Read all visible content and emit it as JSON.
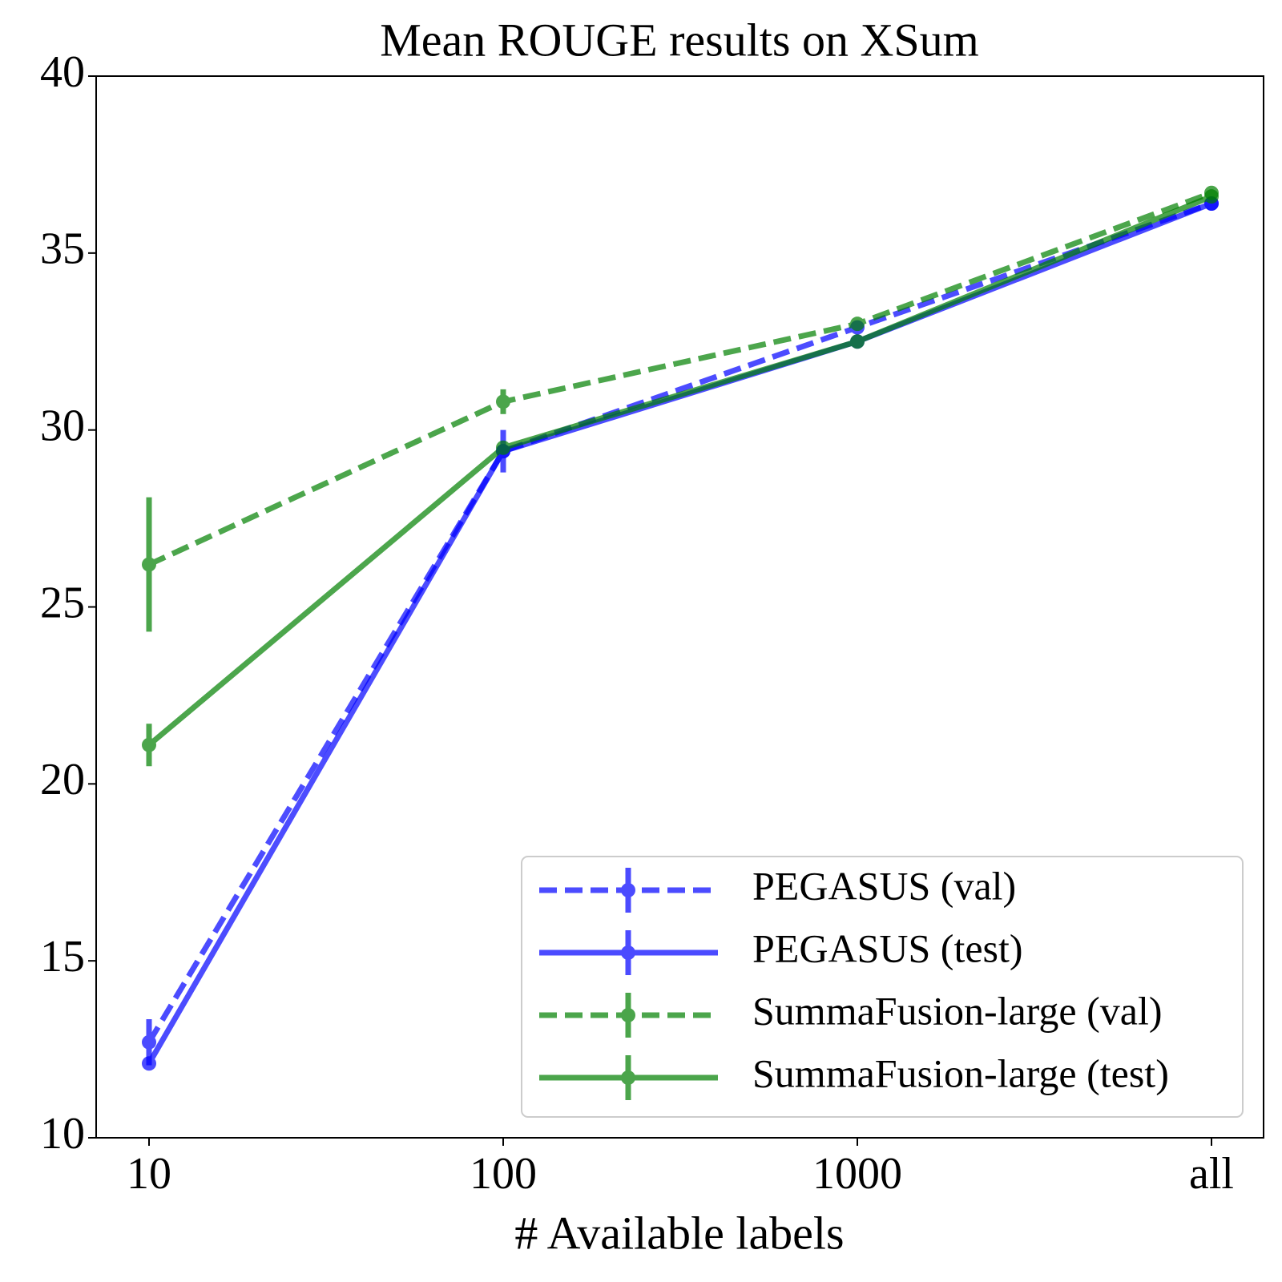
{
  "chart_data": {
    "type": "line",
    "title": "Mean ROUGE results on XSum",
    "x_label": "# Available labels",
    "categories": [
      "10",
      "100",
      "1000",
      "all"
    ],
    "ylim": [
      10,
      40
    ],
    "yticks": [
      10,
      15,
      20,
      25,
      30,
      35,
      40
    ],
    "legend": "lower right",
    "series": [
      {
        "name": "PEGASUS (val)",
        "color": "#0000ff",
        "linestyle": "dashed",
        "values": [
          12.7,
          29.4,
          32.9,
          36.4
        ],
        "errors": [
          0.65,
          0.6,
          0.1,
          0.1
        ]
      },
      {
        "name": "PEGASUS (test)",
        "color": "#0000ff",
        "linestyle": "solid",
        "values": [
          12.1,
          29.4,
          32.5,
          36.4
        ],
        "errors": [
          0.1,
          0.2,
          0.1,
          0.1
        ]
      },
      {
        "name": "SummaFusion-large (val)",
        "color": "#008000",
        "linestyle": "dashed",
        "values": [
          26.2,
          30.8,
          33.0,
          36.7
        ],
        "errors": [
          1.9,
          0.35,
          0.1,
          0.1
        ]
      },
      {
        "name": "SummaFusion-large (test)",
        "color": "#008000",
        "linestyle": "solid",
        "values": [
          21.1,
          29.5,
          32.5,
          36.6
        ],
        "errors": [
          0.6,
          0.15,
          0.1,
          0.1
        ]
      }
    ]
  }
}
